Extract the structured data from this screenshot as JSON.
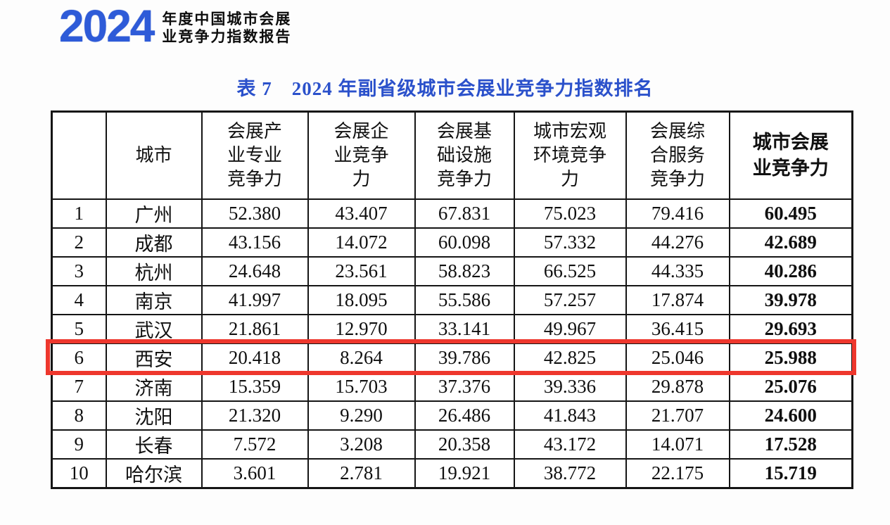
{
  "logo": {
    "year": "2024",
    "line1": "年度中国城市会展",
    "line2": "业竞争力指数报告"
  },
  "title": "表 7　2024 年副省级城市会展业竞争力指数排名",
  "colors": {
    "logo_blue": "#2e5bd8",
    "title_blue": "#2b51cb",
    "highlight_red": "#ee372d",
    "border_black": "#151515"
  },
  "table": {
    "columns": [
      {
        "label": "",
        "lines": [
          ""
        ],
        "bold": false
      },
      {
        "label": "城市",
        "lines": [
          "城市"
        ],
        "bold": false
      },
      {
        "label": "会展产业专业竞争力",
        "lines": [
          "会展产",
          "业专业",
          "竞争力"
        ],
        "bold": false
      },
      {
        "label": "会展企业竞争力",
        "lines": [
          "会展企",
          "业竞争",
          "力"
        ],
        "bold": false
      },
      {
        "label": "会展基础设施竞争力",
        "lines": [
          "会展基",
          "础设施",
          "竞争力"
        ],
        "bold": false
      },
      {
        "label": "城市宏观环境竞争力",
        "lines": [
          "城市宏观",
          "环境竞争",
          "力"
        ],
        "bold": false
      },
      {
        "label": "会展综合服务竞争力",
        "lines": [
          "会展综",
          "合服务",
          "竞争力"
        ],
        "bold": false
      },
      {
        "label": "城市会展业竞争力",
        "lines": [
          "城市会展",
          "业竞争力"
        ],
        "bold": true
      }
    ],
    "rows": [
      {
        "rank": "1",
        "city": "广州",
        "values": [
          "52.380",
          "43.407",
          "67.831",
          "75.023",
          "79.416"
        ],
        "total": "60.495",
        "highlight": false
      },
      {
        "rank": "2",
        "city": "成都",
        "values": [
          "43.156",
          "14.072",
          "60.098",
          "57.332",
          "44.276"
        ],
        "total": "42.689",
        "highlight": false
      },
      {
        "rank": "3",
        "city": "杭州",
        "values": [
          "24.648",
          "23.561",
          "58.823",
          "66.525",
          "44.335"
        ],
        "total": "40.286",
        "highlight": false
      },
      {
        "rank": "4",
        "city": "南京",
        "values": [
          "41.997",
          "18.095",
          "55.586",
          "57.257",
          "17.874"
        ],
        "total": "39.978",
        "highlight": false
      },
      {
        "rank": "5",
        "city": "武汉",
        "values": [
          "21.861",
          "12.970",
          "33.141",
          "49.967",
          "36.415"
        ],
        "total": "29.693",
        "highlight": false
      },
      {
        "rank": "6",
        "city": "西安",
        "values": [
          "20.418",
          "8.264",
          "39.786",
          "42.825",
          "25.046"
        ],
        "total": "25.988",
        "highlight": true
      },
      {
        "rank": "7",
        "city": "济南",
        "values": [
          "15.359",
          "15.703",
          "37.376",
          "39.336",
          "29.878"
        ],
        "total": "25.076",
        "highlight": false
      },
      {
        "rank": "8",
        "city": "沈阳",
        "values": [
          "21.320",
          "9.290",
          "26.486",
          "41.843",
          "21.707"
        ],
        "total": "24.600",
        "highlight": false
      },
      {
        "rank": "9",
        "city": "长春",
        "values": [
          "7.572",
          "3.208",
          "20.358",
          "43.172",
          "14.071"
        ],
        "total": "17.528",
        "highlight": false
      },
      {
        "rank": "10",
        "city": "哈尔滨",
        "values": [
          "3.601",
          "2.781",
          "19.921",
          "38.772",
          "22.175"
        ],
        "total": "15.719",
        "highlight": false
      }
    ]
  }
}
